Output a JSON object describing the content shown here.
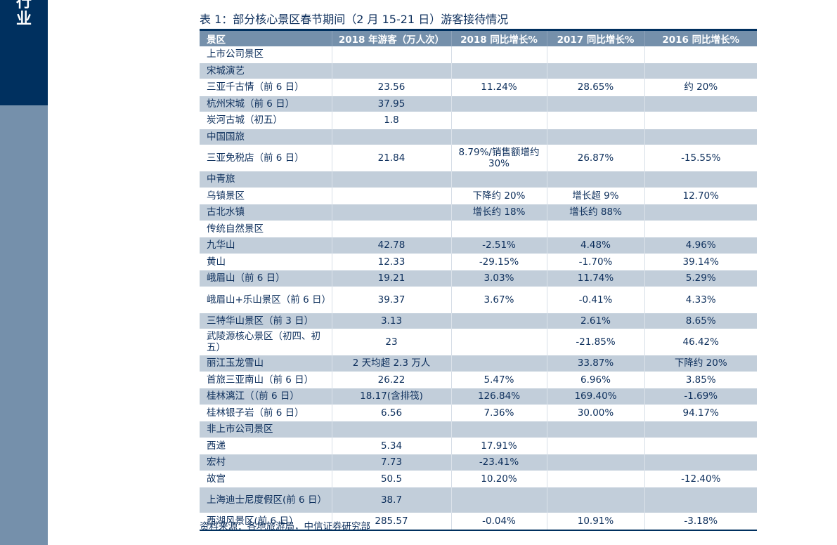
{
  "sidebar": {
    "label": "行业",
    "colors": {
      "top": "#00305f",
      "bottom": "#7590ab"
    }
  },
  "table": {
    "title": "表 1：部分核心景区春节期间（2 月 15-21 日）游客接待情况",
    "headers": [
      "景区",
      "2018 年游客（万人次）",
      "2018 同比增长%",
      "2017 同比增长%",
      "2016 同比增长%"
    ],
    "rows": [
      {
        "cells": [
          "上市公司景区",
          "",
          "",
          "",
          ""
        ],
        "shaded": false,
        "tall": false
      },
      {
        "cells": [
          "宋城演艺",
          "",
          "",
          "",
          ""
        ],
        "shaded": true,
        "tall": false
      },
      {
        "cells": [
          "三亚千古情（前 6 日）",
          "23.56",
          "11.24%",
          "28.65%",
          "约 20%"
        ],
        "shaded": false,
        "tall": false
      },
      {
        "cells": [
          "杭州宋城（前 6 日）",
          "37.95",
          "",
          "",
          ""
        ],
        "shaded": true,
        "tall": false
      },
      {
        "cells": [
          "炭河古城（初五）",
          "1.8",
          "",
          "",
          ""
        ],
        "shaded": false,
        "tall": false
      },
      {
        "cells": [
          "中国国旅",
          "",
          "",
          "",
          ""
        ],
        "shaded": true,
        "tall": false
      },
      {
        "cells": [
          "三亚免税店（前 6 日）",
          "21.84",
          "8.79%/销售额增约 30%",
          "26.87%",
          "-15.55%"
        ],
        "shaded": false,
        "tall": true
      },
      {
        "cells": [
          "中青旅",
          "",
          "",
          "",
          ""
        ],
        "shaded": true,
        "tall": false
      },
      {
        "cells": [
          "乌镇景区",
          "",
          "下降约 20%",
          "增长超 9%",
          "12.70%"
        ],
        "shaded": false,
        "tall": false
      },
      {
        "cells": [
          "古北水镇",
          "",
          "增长约 18%",
          "增长约 88%",
          ""
        ],
        "shaded": true,
        "tall": false
      },
      {
        "cells": [
          "传统自然景区",
          "",
          "",
          "",
          ""
        ],
        "shaded": false,
        "tall": false
      },
      {
        "cells": [
          "九华山",
          "42.78",
          "-2.51%",
          "4.48%",
          "4.96%"
        ],
        "shaded": true,
        "tall": false
      },
      {
        "cells": [
          "黄山",
          "12.33",
          "-29.15%",
          "-1.70%",
          "39.14%"
        ],
        "shaded": false,
        "tall": false
      },
      {
        "cells": [
          "峨眉山（前 6 日）",
          "19.21",
          "3.03%",
          "11.74%",
          "5.29%"
        ],
        "shaded": true,
        "tall": false
      },
      {
        "cells": [
          "峨眉山+乐山景区（前 6 日）",
          "39.37",
          "3.67%",
          "-0.41%",
          "4.33%"
        ],
        "shaded": false,
        "tall": true
      },
      {
        "cells": [
          "三特华山景区（前 3 日）",
          "3.13",
          "",
          "2.61%",
          "8.65%"
        ],
        "shaded": true,
        "tall": false
      },
      {
        "cells": [
          "武陵源核心景区（初四、初五）",
          "23",
          "",
          "-21.85%",
          "46.42%"
        ],
        "shaded": false,
        "tall": true
      },
      {
        "cells": [
          "丽江玉龙雪山",
          "2 天均超 2.3 万人",
          "",
          "33.87%",
          "下降约 20%"
        ],
        "shaded": true,
        "tall": false
      },
      {
        "cells": [
          "首旅三亚南山（前 6 日）",
          "26.22",
          "5.47%",
          "6.96%",
          "3.85%"
        ],
        "shaded": false,
        "tall": false
      },
      {
        "cells": [
          "桂林漓江（（前 6 日）",
          "18.17(含排筏)",
          "126.84%",
          "169.40%",
          "-1.69%"
        ],
        "shaded": true,
        "tall": false
      },
      {
        "cells": [
          "桂林银子岩（前 6 日）",
          "6.56",
          "7.36%",
          "30.00%",
          "94.17%"
        ],
        "shaded": false,
        "tall": false
      },
      {
        "cells": [
          "非上市公司景区",
          "",
          "",
          "",
          ""
        ],
        "shaded": true,
        "tall": false
      },
      {
        "cells": [
          "西递",
          "5.34",
          "17.91%",
          "",
          ""
        ],
        "shaded": false,
        "tall": false
      },
      {
        "cells": [
          "宏村",
          "7.73",
          "-23.41%",
          "",
          ""
        ],
        "shaded": true,
        "tall": false
      },
      {
        "cells": [
          "故宫",
          "50.5",
          "10.20%",
          "",
          "-12.40%"
        ],
        "shaded": false,
        "tall": false
      },
      {
        "cells": [
          "上海迪士尼度假区(前 6 日）",
          "38.7",
          "",
          "",
          ""
        ],
        "shaded": true,
        "tall": true
      },
      {
        "cells": [
          "西湖风景区(前 6 日）",
          "285.57",
          "-0.04%",
          "10.91%",
          "-3.18%"
        ],
        "shaded": false,
        "tall": false
      }
    ],
    "source": "资料来源：各地旅游局，中信证券研究部"
  }
}
